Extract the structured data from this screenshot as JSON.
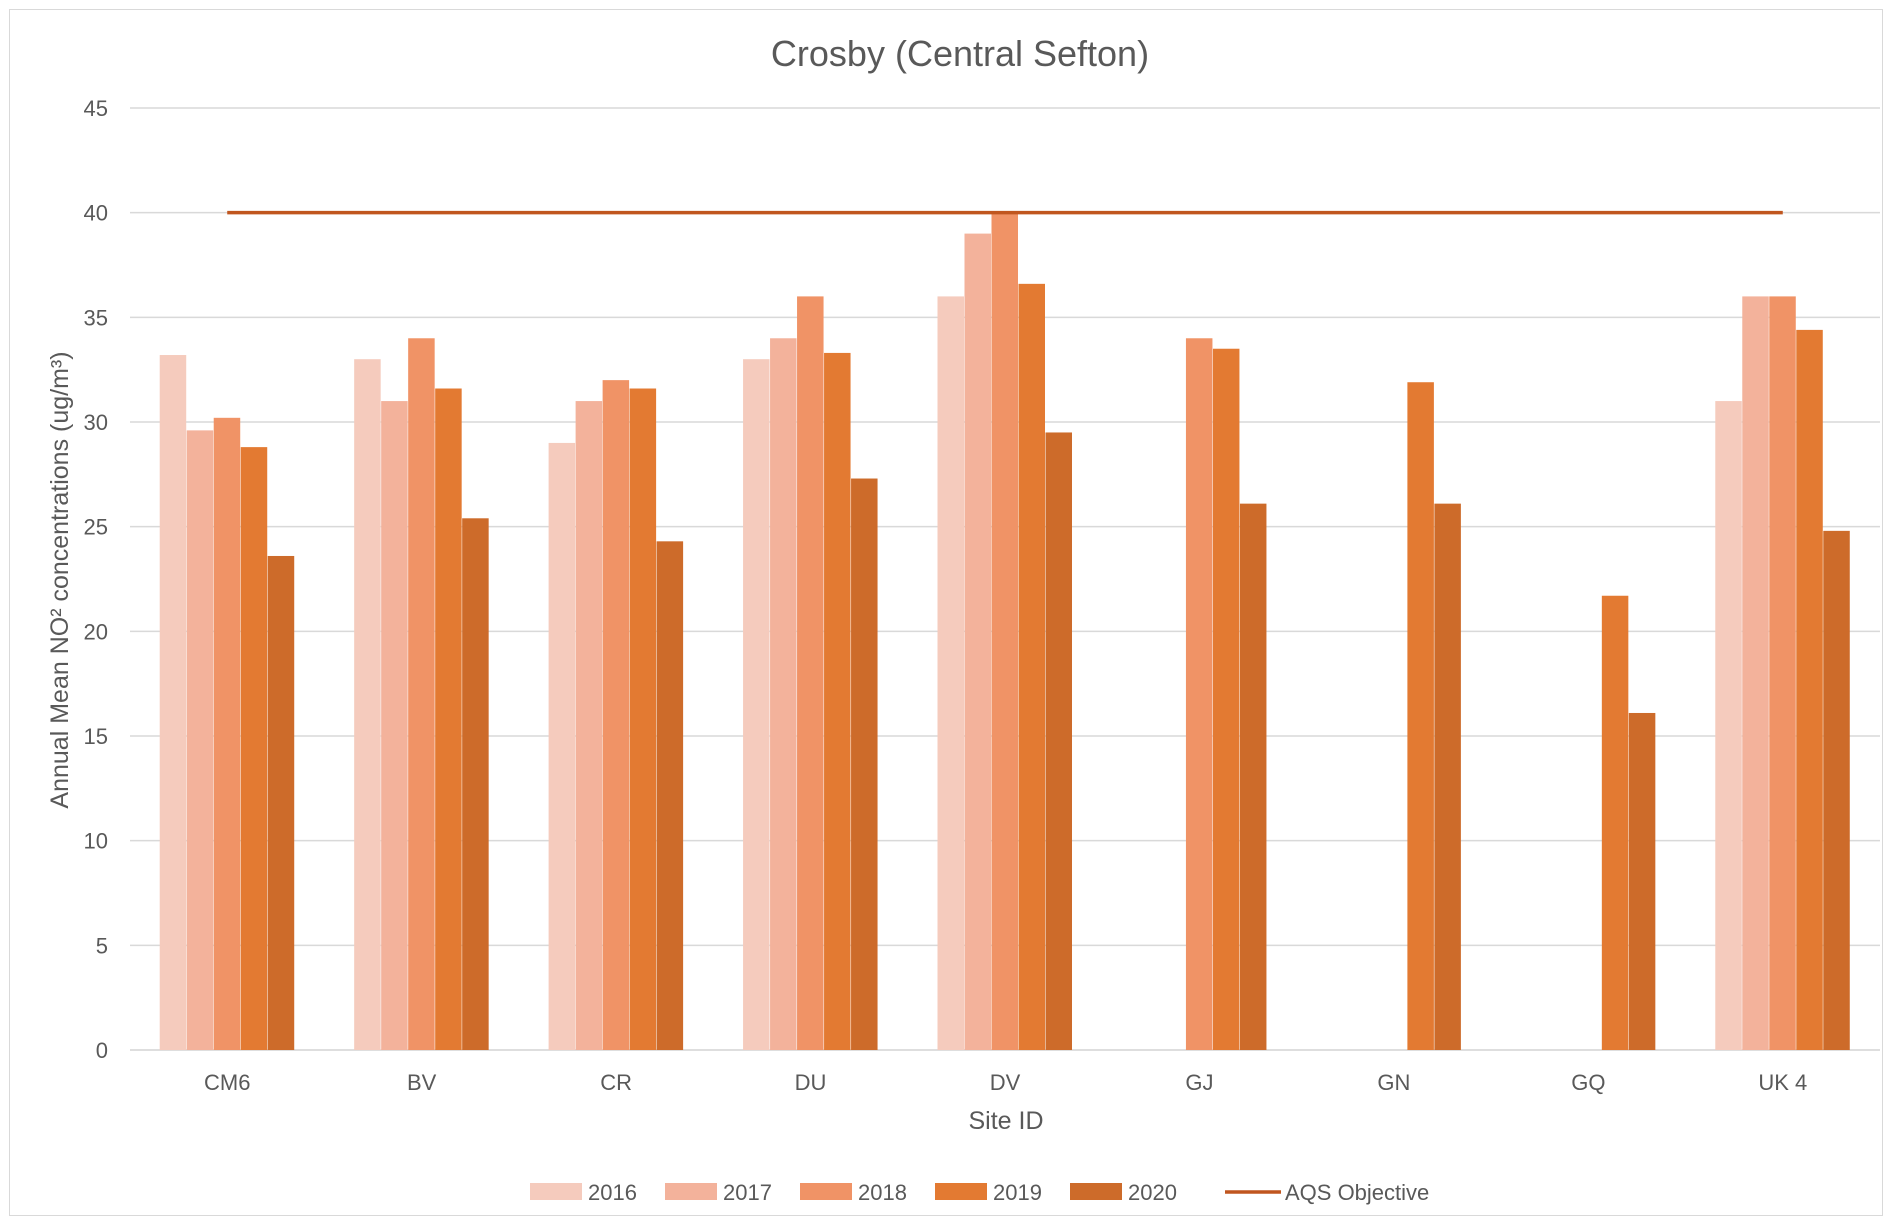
{
  "chart_data": {
    "type": "bar",
    "title": "Crosby (Central Sefton)",
    "xlabel": "Site ID",
    "ylabel": "Annual Mean NO² concentrations (ug/m³)",
    "ylim": [
      0,
      45
    ],
    "yticks": [
      0,
      5,
      10,
      15,
      20,
      25,
      30,
      35,
      40,
      45
    ],
    "grid": true,
    "legend_position": "bottom",
    "categories": [
      "CM6",
      "BV",
      "CR",
      "DU",
      "DV",
      "GJ",
      "GN",
      "GQ",
      "UK 4"
    ],
    "series": [
      {
        "name": "2016",
        "color": "#f5cbbd",
        "values": [
          33.2,
          33.0,
          29.0,
          33.0,
          36.0,
          null,
          null,
          null,
          31.0
        ]
      },
      {
        "name": "2017",
        "color": "#f3b29b",
        "values": [
          29.6,
          31.0,
          31.0,
          34.0,
          39.0,
          null,
          null,
          null,
          36.0
        ]
      },
      {
        "name": "2018",
        "color": "#f09366",
        "values": [
          30.2,
          34.0,
          32.0,
          36.0,
          40.0,
          34.0,
          null,
          null,
          36.0
        ]
      },
      {
        "name": "2019",
        "color": "#e37a32",
        "values": [
          28.8,
          31.6,
          31.6,
          33.3,
          36.6,
          33.5,
          31.9,
          21.7,
          34.4
        ]
      },
      {
        "name": "2020",
        "color": "#cd6b2a",
        "values": [
          23.6,
          25.4,
          24.3,
          27.3,
          29.5,
          26.1,
          26.1,
          16.1,
          24.8
        ]
      }
    ],
    "line_series": {
      "name": "AQS Objective",
      "color": "#c0561f",
      "value": 40
    }
  }
}
